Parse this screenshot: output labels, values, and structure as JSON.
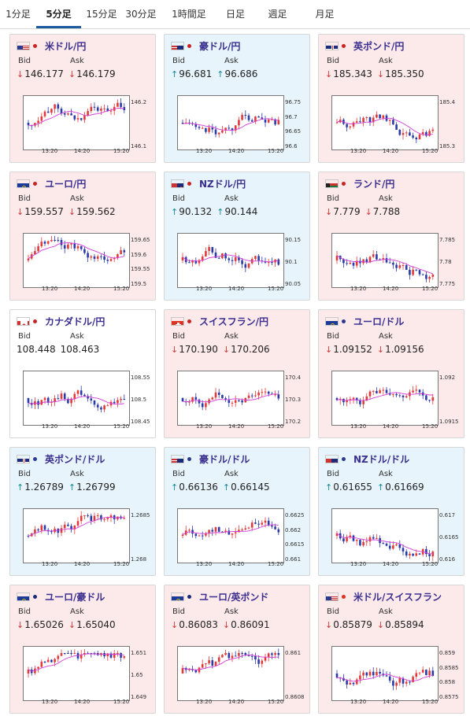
{
  "tabs": [
    {
      "label": "1分足",
      "active": false
    },
    {
      "label": "5分足",
      "active": true
    },
    {
      "label": "15分足",
      "active": false
    },
    {
      "label": "30分足",
      "active": false
    },
    {
      "label": "1時間足",
      "active": false
    },
    {
      "label": "日足",
      "active": false
    },
    {
      "label": "週足",
      "active": false
    },
    {
      "label": "月足",
      "active": false
    }
  ],
  "labels": {
    "bid": "Bid",
    "ask": "Ask"
  },
  "x_ticks": [
    "13:20",
    "14:20",
    "15:20"
  ],
  "colors": {
    "up_bg": "#e7f4fb",
    "down_bg": "#fce9ea",
    "bull": "#e23a3a",
    "bear": "#2b3aa8",
    "ma": "#d23cd6",
    "ma2": "#2aa0a8",
    "arrow_down": "#d23c3c",
    "arrow_up": "#1a8a9a",
    "pair_text": "#3a2f8f"
  },
  "cards": [
    {
      "pair": "米ドル/円",
      "flag": "us-jp",
      "bg": "down",
      "bid": "146.177",
      "ask": "146.179",
      "bid_dir": "down",
      "ask_dir": "down",
      "y_ticks": [
        "146.2",
        "146.1"
      ]
    },
    {
      "pair": "豪ドル/円",
      "flag": "au-jp",
      "bg": "up",
      "bid": "96.681",
      "ask": "96.686",
      "bid_dir": "up",
      "ask_dir": "up",
      "y_ticks": [
        "96.75",
        "96.7",
        "96.65",
        "96.6"
      ]
    },
    {
      "pair": "英ポンド/円",
      "flag": "gb-jp",
      "bg": "down",
      "bid": "185.343",
      "ask": "185.350",
      "bid_dir": "down",
      "ask_dir": "down",
      "y_ticks": [
        "185.4",
        "185.3"
      ]
    },
    {
      "pair": "ユーロ/円",
      "flag": "eu-jp",
      "bg": "down",
      "bid": "159.557",
      "ask": "159.562",
      "bid_dir": "down",
      "ask_dir": "down",
      "y_ticks": [
        "159.65",
        "159.6",
        "159.55",
        "159.5"
      ]
    },
    {
      "pair": "NZドル/円",
      "flag": "nz-jp",
      "bg": "up",
      "bid": "90.132",
      "ask": "90.144",
      "bid_dir": "up",
      "ask_dir": "up",
      "y_ticks": [
        "90.15",
        "90.1",
        "90.05"
      ]
    },
    {
      "pair": "ランド/円",
      "flag": "za-jp",
      "bg": "down",
      "bid": "7.779",
      "ask": "7.788",
      "bid_dir": "down",
      "ask_dir": "down",
      "y_ticks": [
        "7.785",
        "7.78",
        "7.775"
      ]
    },
    {
      "pair": "カナダドル/円",
      "flag": "ca-jp",
      "bg": "neutral",
      "bid": "108.448",
      "ask": "108.463",
      "bid_dir": "none",
      "ask_dir": "none",
      "y_ticks": [
        "108.55",
        "108.5",
        "108.45"
      ]
    },
    {
      "pair": "スイスフラン/円",
      "flag": "ch-jp",
      "bg": "down",
      "bid": "170.190",
      "ask": "170.206",
      "bid_dir": "down",
      "ask_dir": "down",
      "y_ticks": [
        "170.4",
        "170.3",
        "170.2"
      ]
    },
    {
      "pair": "ユーロ/ドル",
      "flag": "eu-us",
      "bg": "down",
      "bid": "1.09152",
      "ask": "1.09156",
      "bid_dir": "down",
      "ask_dir": "down",
      "y_ticks": [
        "1.092",
        "1.0915"
      ]
    },
    {
      "pair": "英ポンド/ドル",
      "flag": "gb-us",
      "bg": "up",
      "bid": "1.26789",
      "ask": "1.26799",
      "bid_dir": "up",
      "ask_dir": "up",
      "y_ticks": [
        "1.2685",
        "1.268"
      ]
    },
    {
      "pair": "豪ドル/ドル",
      "flag": "au-us",
      "bg": "up",
      "bid": "0.66136",
      "ask": "0.66145",
      "bid_dir": "up",
      "ask_dir": "up",
      "y_ticks": [
        "0.6625",
        "0.662",
        "0.6615",
        "0.661"
      ]
    },
    {
      "pair": "NZドル/ドル",
      "flag": "nz-us",
      "bg": "up",
      "bid": "0.61655",
      "ask": "0.61669",
      "bid_dir": "up",
      "ask_dir": "up",
      "y_ticks": [
        "0.617",
        "0.6165",
        "0.616"
      ]
    },
    {
      "pair": "ユーロ/豪ドル",
      "flag": "eu-au",
      "bg": "down",
      "bid": "1.65026",
      "ask": "1.65040",
      "bid_dir": "down",
      "ask_dir": "down",
      "y_ticks": [
        "1.651",
        "1.65",
        "1.649"
      ]
    },
    {
      "pair": "ユーロ/英ポンド",
      "flag": "eu-gb",
      "bg": "down",
      "bid": "0.86083",
      "ask": "0.86091",
      "bid_dir": "down",
      "ask_dir": "down",
      "y_ticks": [
        "0.861",
        "0.8608"
      ]
    },
    {
      "pair": "米ドル/スイスフラン",
      "flag": "us-ch",
      "bg": "down",
      "bid": "0.85879",
      "ask": "0.85894",
      "bid_dir": "down",
      "ask_dir": "down",
      "y_ticks": [
        "0.859",
        "0.8585",
        "0.858",
        "0.8575"
      ]
    }
  ]
}
